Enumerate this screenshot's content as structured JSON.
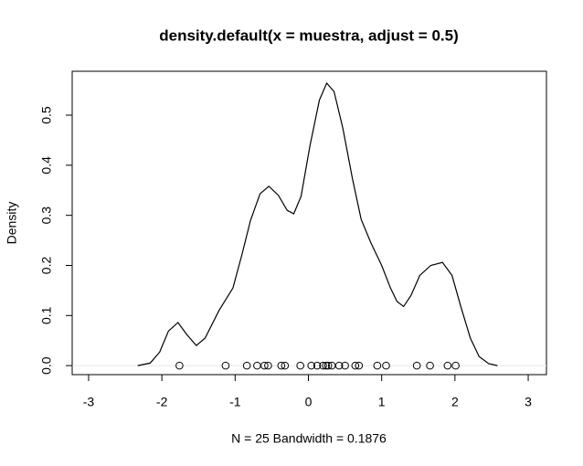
{
  "chart_data": {
    "type": "density",
    "title": "density.default(x = muestra, adjust = 0.5)",
    "xlabel": "N = 25   Bandwidth = 0.1876",
    "ylabel": "Density",
    "color": "#000000",
    "x": [
      -2.33,
      -2.16,
      -2.03,
      -1.91,
      -1.78,
      -1.66,
      -1.53,
      -1.41,
      -1.22,
      -1.03,
      -0.91,
      -0.79,
      -0.66,
      -0.54,
      -0.41,
      -0.29,
      -0.2,
      -0.1,
      0.02,
      0.15,
      0.25,
      0.35,
      0.47,
      0.6,
      0.72,
      0.85,
      1,
      1.12,
      1.21,
      1.3,
      1.4,
      1.52,
      1.67,
      1.83,
      1.96,
      2.08,
      2.21,
      2.33,
      2.46,
      2.58
    ],
    "values": [
      0,
      0.005,
      0.027,
      0.069,
      0.086,
      0.062,
      0.04,
      0.055,
      0.11,
      0.155,
      0.22,
      0.29,
      0.343,
      0.358,
      0.34,
      0.31,
      0.303,
      0.338,
      0.438,
      0.53,
      0.564,
      0.547,
      0.474,
      0.374,
      0.292,
      0.246,
      0.2,
      0.155,
      0.128,
      0.118,
      0.14,
      0.18,
      0.2,
      0.206,
      0.18,
      0.118,
      0.055,
      0.018,
      0.004,
      0
    ],
    "points": {
      "x": [
        -1.76,
        -1.13,
        -0.84,
        -0.7,
        -0.6,
        -0.55,
        -0.37,
        -0.32,
        -0.11,
        0.04,
        0.12,
        0.2,
        0.24,
        0.27,
        0.32,
        0.42,
        0.5,
        0.64,
        0.69,
        0.94,
        1.06,
        1.48,
        1.66,
        1.9,
        2.01
      ],
      "values": [
        0,
        0,
        0,
        0,
        0,
        0,
        0,
        0,
        0,
        0,
        0,
        0,
        0,
        0,
        0,
        0,
        0,
        0,
        0,
        0,
        0,
        0,
        0,
        0,
        0
      ]
    },
    "xlim": [
      -3.224,
      3.249
    ],
    "ylim": [
      -0.018,
      0.5876
    ],
    "xticks": [
      -3,
      -2,
      -1,
      0,
      1,
      2,
      3
    ],
    "yticks": [
      {
        "value": 0,
        "label": "0.0"
      },
      {
        "value": 0.1,
        "label": "0.1"
      },
      {
        "value": 0.2,
        "label": "0.2"
      },
      {
        "value": 0.3,
        "label": "0.3"
      },
      {
        "value": 0.4,
        "label": "0.4"
      },
      {
        "value": 0.5,
        "label": "0.5"
      }
    ]
  }
}
